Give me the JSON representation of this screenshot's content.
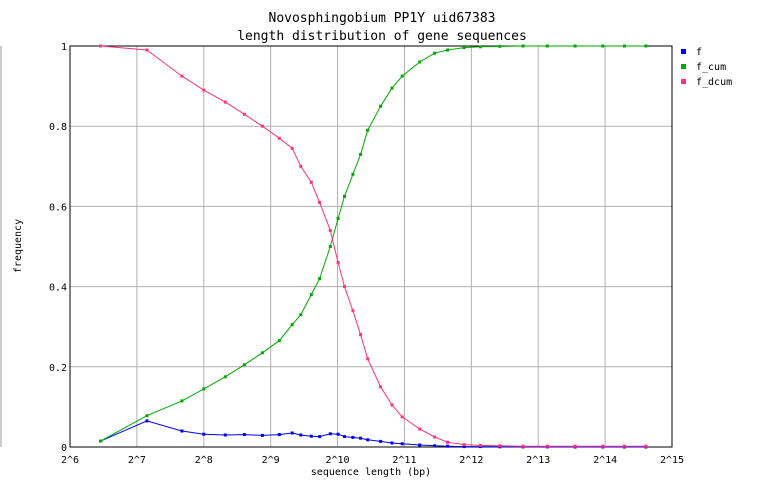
{
  "chart_data": {
    "type": "line",
    "title": "Novosphingobium PP1Y uid67383",
    "subtitle": "length distribution of gene sequences",
    "xlabel": "sequence length (bp)",
    "ylabel": "frequency",
    "x_scale": "log2",
    "xlim": [
      64,
      32768
    ],
    "ylim": [
      0,
      1
    ],
    "x_tick_labels": [
      "2^6",
      "2^7",
      "2^8",
      "2^9",
      "2^10",
      "2^11",
      "2^12",
      "2^13",
      "2^14",
      "2^15"
    ],
    "y_tick_labels": [
      "0",
      "0.2",
      "0.4",
      "0.6",
      "0.8",
      "1"
    ],
    "grid": true,
    "legend_position": "top-right",
    "series": [
      {
        "name": "f",
        "color": "#0000ff",
        "x": [
          88,
          142,
          204,
          256,
          320,
          390,
          470,
          560,
          640,
          700,
          780,
          850,
          950,
          1030,
          1100,
          1200,
          1300,
          1400,
          1600,
          1800,
          2000,
          2400,
          2800,
          3200,
          3800,
          4500,
          5500,
          7000,
          9000,
          12000,
          16000,
          20000,
          25000
        ],
        "y": [
          0.015,
          0.065,
          0.04,
          0.032,
          0.03,
          0.031,
          0.029,
          0.031,
          0.035,
          0.03,
          0.027,
          0.026,
          0.033,
          0.032,
          0.026,
          0.024,
          0.022,
          0.018,
          0.014,
          0.01,
          0.008,
          0.005,
          0.003,
          0.002,
          0.001,
          0.001,
          0.0005,
          0.0003,
          0.0002,
          0.0001,
          0.0001,
          0.0001,
          0.0001
        ]
      },
      {
        "name": "f_cum",
        "color": "#00aa00",
        "x": [
          88,
          142,
          204,
          256,
          320,
          390,
          470,
          560,
          640,
          700,
          780,
          850,
          950,
          1030,
          1100,
          1200,
          1300,
          1400,
          1600,
          1800,
          2000,
          2400,
          2800,
          3200,
          3800,
          4500,
          5500,
          7000,
          9000,
          12000,
          16000,
          20000,
          25000
        ],
        "y": [
          0.015,
          0.078,
          0.115,
          0.145,
          0.175,
          0.205,
          0.235,
          0.265,
          0.305,
          0.33,
          0.38,
          0.42,
          0.5,
          0.57,
          0.625,
          0.68,
          0.73,
          0.79,
          0.85,
          0.895,
          0.925,
          0.96,
          0.982,
          0.99,
          0.996,
          0.998,
          0.999,
          1.0,
          1.0,
          1.0,
          1.0,
          1.0,
          1.0
        ]
      },
      {
        "name": "f_dcum",
        "color": "#ff3377",
        "x": [
          88,
          142,
          204,
          256,
          320,
          390,
          470,
          560,
          640,
          700,
          780,
          850,
          950,
          1030,
          1100,
          1200,
          1300,
          1400,
          1600,
          1800,
          2000,
          2400,
          2800,
          3200,
          3800,
          4500,
          5500,
          7000,
          9000,
          12000,
          16000,
          20000,
          25000
        ],
        "y": [
          1.0,
          0.99,
          0.925,
          0.89,
          0.86,
          0.83,
          0.8,
          0.77,
          0.745,
          0.7,
          0.66,
          0.61,
          0.54,
          0.46,
          0.4,
          0.34,
          0.28,
          0.22,
          0.15,
          0.105,
          0.075,
          0.045,
          0.025,
          0.012,
          0.006,
          0.004,
          0.003,
          0.002,
          0.002,
          0.002,
          0.002,
          0.002,
          0.002
        ]
      }
    ]
  }
}
